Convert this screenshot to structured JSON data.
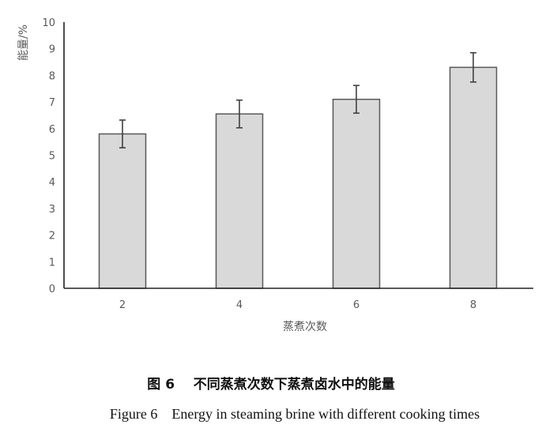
{
  "chart_data": {
    "type": "bar",
    "categories": [
      "2",
      "4",
      "6",
      "8"
    ],
    "values": [
      5.8,
      6.55,
      7.1,
      8.3
    ],
    "errors": [
      0.52,
      0.52,
      0.52,
      0.55
    ],
    "xlabel": "蒸煮次数",
    "ylabel": "能量/%",
    "ylim": [
      0,
      10
    ],
    "yticks": [
      "0",
      "1",
      "2",
      "3",
      "4",
      "5",
      "6",
      "7",
      "8",
      "9",
      "10"
    ],
    "grid": false,
    "bar_color": "#d9d9d9",
    "bar_edge_color": "#595959",
    "error_bar_color": "#404040"
  },
  "caption": {
    "cn": "图 6    不同蒸煮次数下蒸煮卤水中的能量",
    "en": "Figure 6    Energy in steaming brine with different cooking times"
  }
}
